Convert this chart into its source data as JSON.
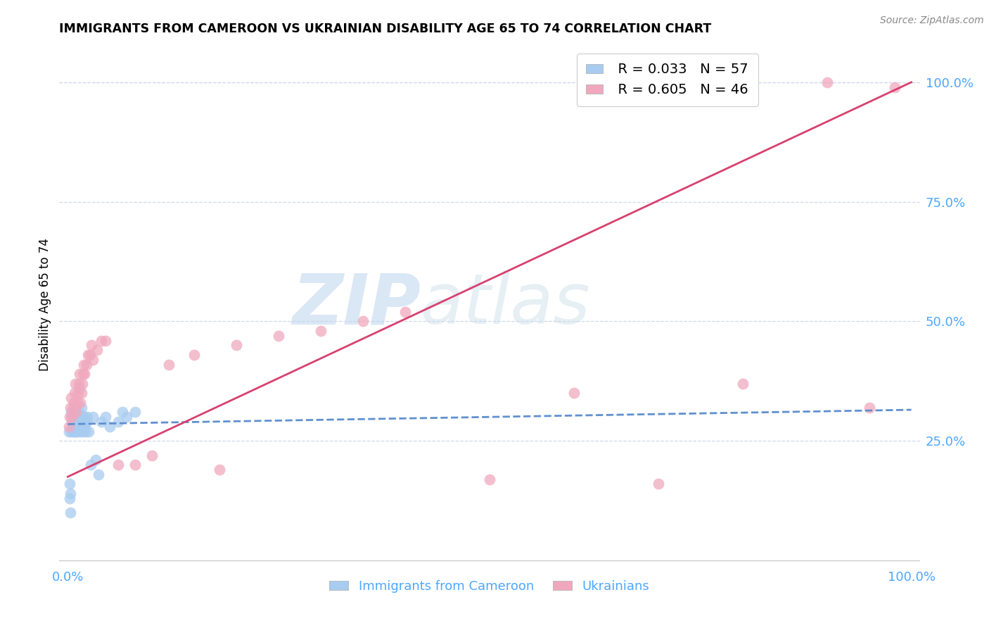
{
  "title": "IMMIGRANTS FROM CAMEROON VS UKRAINIAN DISABILITY AGE 65 TO 74 CORRELATION CHART",
  "source": "Source: ZipAtlas.com",
  "tick_color": "#4da6ff",
  "ylabel": "Disability Age 65 to 74",
  "xlim": [
    -0.01,
    1.01
  ],
  "ylim": [
    -0.01,
    1.08
  ],
  "ytick_labels": [
    "25.0%",
    "50.0%",
    "75.0%",
    "100.0%"
  ],
  "ytick_values": [
    0.25,
    0.5,
    0.75,
    1.0
  ],
  "xtick_values": [
    0.0,
    0.2,
    0.4,
    0.6,
    0.8,
    1.0
  ],
  "xtick_labels": [
    "0.0%",
    "",
    "",
    "",
    "",
    "100.0%"
  ],
  "legend_R1": "R = 0.033",
  "legend_N1": "N = 57",
  "legend_R2": "R = 0.605",
  "legend_N2": "N = 46",
  "blue_color": "#a8ccf0",
  "pink_color": "#f0a8be",
  "blue_line_color": "#6090d0",
  "pink_line_color": "#d84070",
  "watermark_zip": "ZIP",
  "watermark_atlas": "atlas",
  "blue_scatter_x": [
    0.001,
    0.002,
    0.002,
    0.003,
    0.003,
    0.004,
    0.004,
    0.005,
    0.005,
    0.005,
    0.006,
    0.006,
    0.006,
    0.007,
    0.007,
    0.008,
    0.008,
    0.008,
    0.009,
    0.009,
    0.009,
    0.01,
    0.01,
    0.01,
    0.011,
    0.011,
    0.012,
    0.012,
    0.013,
    0.013,
    0.014,
    0.014,
    0.015,
    0.015,
    0.016,
    0.016,
    0.017,
    0.018,
    0.018,
    0.019,
    0.02,
    0.02,
    0.021,
    0.022,
    0.023,
    0.025,
    0.027,
    0.03,
    0.033,
    0.036,
    0.04,
    0.045,
    0.05,
    0.06,
    0.065,
    0.07,
    0.08
  ],
  "blue_scatter_y": [
    0.27,
    0.13,
    0.16,
    0.1,
    0.14,
    0.27,
    0.31,
    0.28,
    0.29,
    0.3,
    0.27,
    0.29,
    0.3,
    0.28,
    0.31,
    0.27,
    0.29,
    0.3,
    0.28,
    0.29,
    0.32,
    0.27,
    0.29,
    0.31,
    0.3,
    0.27,
    0.28,
    0.3,
    0.29,
    0.31,
    0.28,
    0.36,
    0.27,
    0.3,
    0.29,
    0.32,
    0.28,
    0.3,
    0.27,
    0.29,
    0.28,
    0.3,
    0.27,
    0.29,
    0.3,
    0.27,
    0.2,
    0.3,
    0.21,
    0.18,
    0.29,
    0.3,
    0.28,
    0.29,
    0.31,
    0.3,
    0.31
  ],
  "pink_scatter_x": [
    0.001,
    0.002,
    0.003,
    0.004,
    0.005,
    0.006,
    0.007,
    0.008,
    0.009,
    0.01,
    0.011,
    0.012,
    0.013,
    0.014,
    0.015,
    0.016,
    0.017,
    0.018,
    0.019,
    0.02,
    0.022,
    0.024,
    0.026,
    0.028,
    0.03,
    0.035,
    0.04,
    0.045,
    0.06,
    0.08,
    0.1,
    0.12,
    0.15,
    0.18,
    0.2,
    0.25,
    0.3,
    0.35,
    0.4,
    0.5,
    0.6,
    0.7,
    0.8,
    0.9,
    0.95,
    0.98
  ],
  "pink_scatter_y": [
    0.28,
    0.3,
    0.32,
    0.34,
    0.3,
    0.32,
    0.33,
    0.35,
    0.37,
    0.31,
    0.33,
    0.35,
    0.37,
    0.39,
    0.33,
    0.35,
    0.37,
    0.39,
    0.41,
    0.39,
    0.41,
    0.43,
    0.43,
    0.45,
    0.42,
    0.44,
    0.46,
    0.46,
    0.2,
    0.2,
    0.22,
    0.41,
    0.43,
    0.19,
    0.45,
    0.47,
    0.48,
    0.5,
    0.52,
    0.17,
    0.35,
    0.16,
    0.37,
    1.0,
    0.32,
    0.99
  ],
  "blue_trend_x": [
    0.0,
    1.0
  ],
  "blue_trend_y": [
    0.285,
    0.315
  ],
  "pink_trend_x": [
    0.0,
    1.0
  ],
  "pink_trend_y": [
    0.175,
    1.0
  ],
  "grid_color": "#d0d8e8",
  "background_color": "#ffffff"
}
